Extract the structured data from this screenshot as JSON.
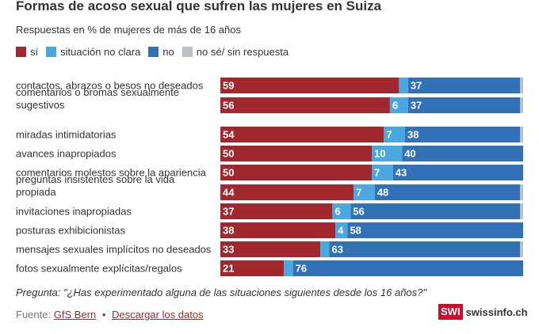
{
  "title": "Formas de acoso sexual que sufren las mujeres en Suiza",
  "subtitle": "Respuestas en % de mujeres de más de 16 años",
  "question": "Pregunta: \"¿Has experimentado alguna de las situaciones siguientes desde los 16 años?\"",
  "footer": {
    "source_prefix": "Fuente:",
    "source_link": "GfS Bern",
    "separator": "•",
    "download_link": "Descargar los datos"
  },
  "logo": {
    "badge": "SWI",
    "site": "swissinfo.ch"
  },
  "colors": {
    "si": "#a2282f",
    "situacion": "#4ba7df",
    "no": "#3271b5",
    "nose": "#b9c0c6"
  },
  "chart_data": {
    "type": "bar",
    "orientation": "horizontal",
    "stacked": true,
    "xlim": [
      0,
      100
    ],
    "categories": [
      "contactos, abrazos o besos no deseados",
      "comentarios o bromas sexualmente sugestivos",
      "miradas intimidatorias",
      "avances inapropiados",
      "comentarios molestos sobre la apariencia",
      "preguntas insistentes sobre la vida propiada",
      "invitaciones inapropiadas",
      "posturas exhibicionistas",
      "mensajes sexuales implícitos no deseados",
      "fotos sexualmente explícitas/regalos"
    ],
    "series": [
      {
        "name": "sí",
        "values": [
          59,
          56,
          54,
          50,
          50,
          44,
          37,
          38,
          33,
          21
        ],
        "labels": [
          "59",
          "56",
          "54",
          "50",
          "50",
          "44",
          "37",
          "38",
          "33",
          "21"
        ]
      },
      {
        "name": "situación no clara",
        "values": [
          3,
          6,
          7,
          10,
          7,
          7,
          6,
          4,
          3,
          3
        ],
        "labels": [
          "",
          "6",
          "7",
          "10",
          "7",
          "7",
          "6",
          "4",
          "",
          ""
        ]
      },
      {
        "name": "no",
        "values": [
          37,
          37,
          38,
          40,
          43,
          48,
          56,
          58,
          63,
          76
        ],
        "labels": [
          "37",
          "37",
          "38",
          "40",
          "43",
          "48",
          "56",
          "58",
          "63",
          "76"
        ]
      },
      {
        "name": "no sé/ sin respuesta",
        "values": [
          1,
          1,
          1,
          0,
          0,
          1,
          1,
          0,
          1,
          0
        ],
        "labels": [
          "",
          "",
          "",
          "",
          "",
          "",
          "",
          "",
          "",
          ""
        ]
      }
    ],
    "grid": false,
    "legend_position": "top-left"
  }
}
